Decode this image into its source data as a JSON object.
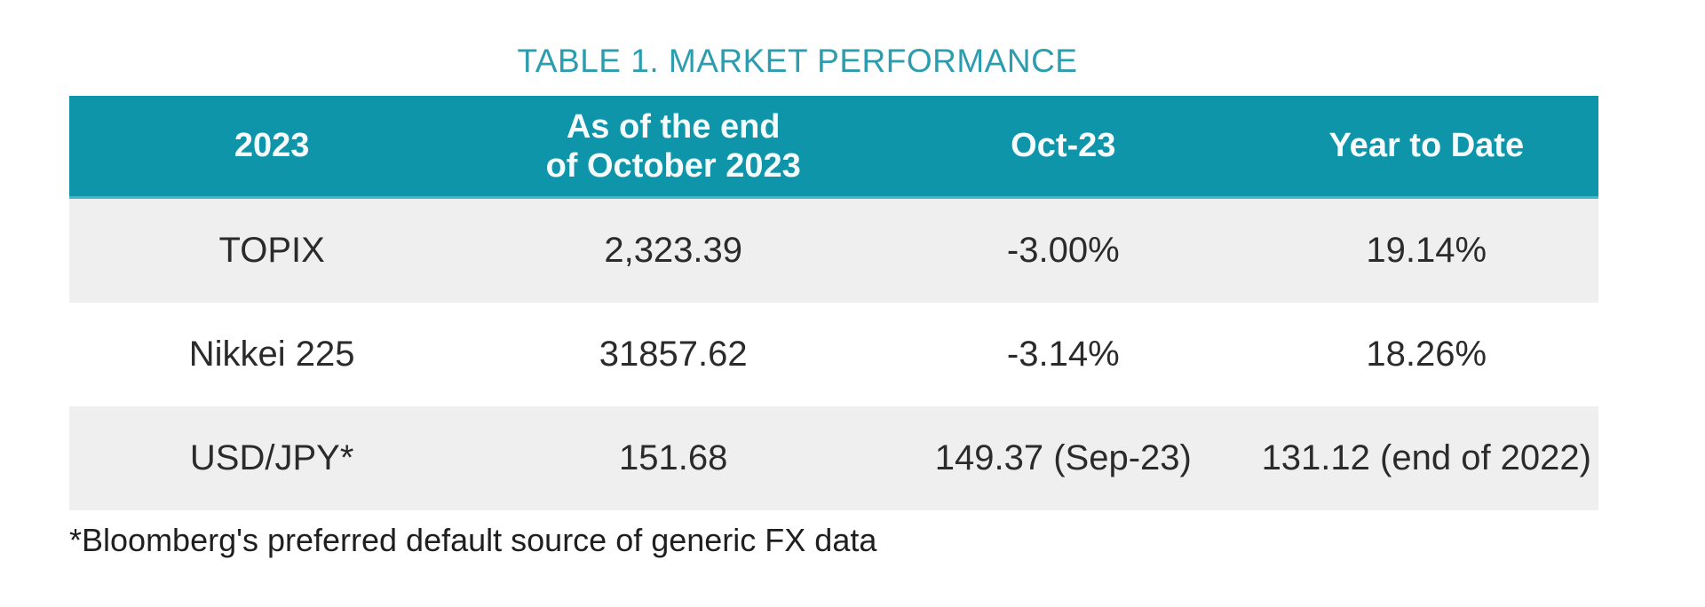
{
  "title": "TABLE 1. MARKET PERFORMANCE",
  "table": {
    "columns": [
      {
        "label": "2023"
      },
      {
        "label": "As of the end\nof October 2023"
      },
      {
        "label": "Oct-23"
      },
      {
        "label": "Year to Date"
      }
    ],
    "rows": [
      {
        "cells": [
          "TOPIX",
          "2,323.39",
          "-3.00%",
          "19.14%"
        ]
      },
      {
        "cells": [
          "Nikkei 225",
          "31857.62",
          "-3.14%",
          "18.26%"
        ]
      },
      {
        "cells": [
          "USD/JPY*",
          "151.68",
          "149.37 (Sep-23)",
          "131.12 (end of 2022)"
        ]
      }
    ]
  },
  "footnote": "*Bloomberg's preferred default source of generic FX data",
  "colors": {
    "header_background": "#0e95a9",
    "header_divider": "#44b5c4",
    "header_text": "#ffffff",
    "title_text": "#2c9dae",
    "row_stripe": "#efefef",
    "body_text": "#2b2b2b"
  }
}
